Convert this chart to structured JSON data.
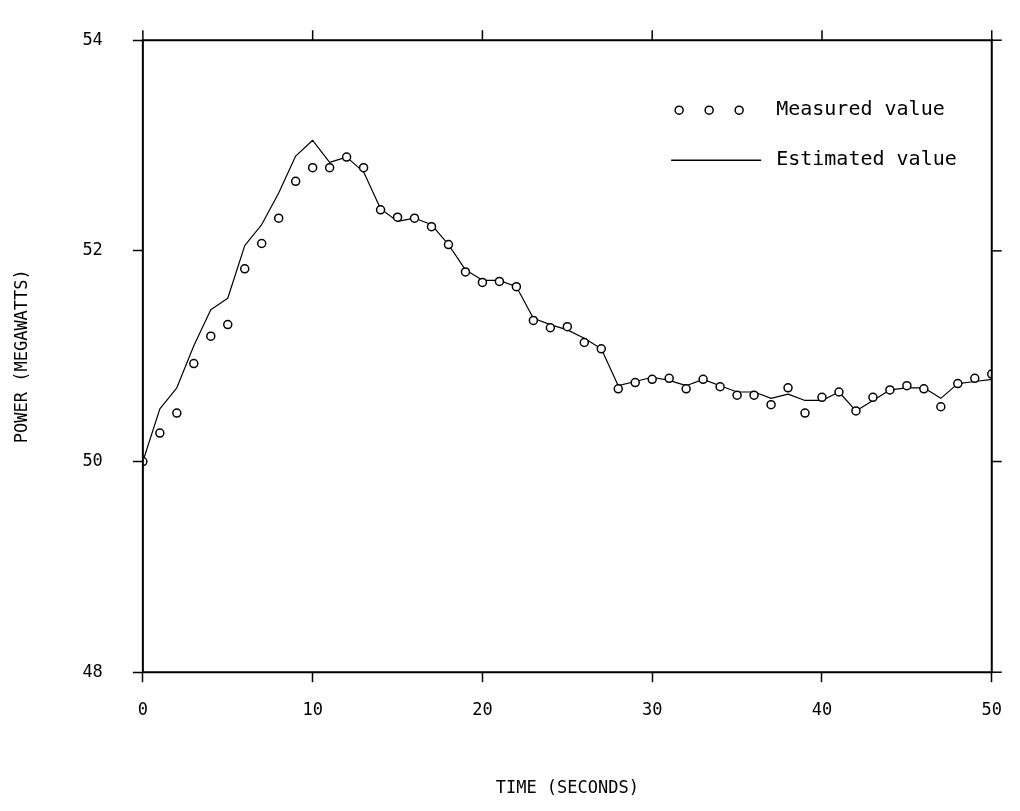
{
  "chart_data": {
    "type": "line",
    "xlabel": "TIME (SECONDS)",
    "ylabel": "POWER (MEGAWATTS)",
    "xlim": [
      0,
      50
    ],
    "xticks": [
      0,
      10,
      20,
      30,
      40,
      50
    ],
    "ylim": [
      48,
      54
    ],
    "yticks": [
      48,
      50,
      52,
      54
    ],
    "grid": false,
    "legend": "top right",
    "series": [
      {
        "name": "Measured value",
        "type": "scatter",
        "marker": "circle",
        "color": "#000000",
        "x": [
          0,
          1,
          2,
          3,
          4,
          5,
          6,
          7,
          8,
          9,
          10,
          11,
          12,
          13,
          14,
          15,
          16,
          17,
          18,
          19,
          20,
          21,
          22,
          23,
          24,
          25,
          26,
          27,
          28,
          29,
          30,
          31,
          32,
          33,
          34,
          35,
          36,
          37,
          38,
          39,
          40,
          41,
          42,
          43,
          44,
          45,
          46,
          47,
          48,
          49,
          50
        ],
        "values": [
          50.0,
          50.27,
          50.46,
          50.93,
          51.19,
          51.3,
          51.83,
          52.07,
          52.31,
          52.66,
          52.79,
          52.79,
          52.89,
          52.79,
          52.39,
          52.32,
          52.31,
          52.23,
          52.06,
          51.8,
          51.7,
          51.71,
          51.66,
          51.34,
          51.27,
          51.28,
          51.13,
          51.07,
          50.69,
          50.75,
          50.78,
          50.79,
          50.69,
          50.78,
          50.71,
          50.63,
          50.63,
          50.54,
          50.7,
          50.46,
          50.61,
          50.66,
          50.48,
          50.61,
          50.68,
          50.72,
          50.69,
          50.52,
          50.74,
          50.79,
          50.83
        ]
      },
      {
        "name": "Estimated value",
        "marker": "none",
        "line_style": "solid",
        "color": "#000000",
        "x": [
          0,
          1,
          2,
          3,
          4,
          5,
          6,
          7,
          8,
          9,
          10,
          11,
          12,
          13,
          14,
          15,
          16,
          17,
          18,
          19,
          20,
          21,
          22,
          23,
          24,
          25,
          26,
          27,
          28,
          29,
          30,
          31,
          32,
          33,
          34,
          35,
          36,
          37,
          38,
          39,
          40,
          41,
          42,
          43,
          44,
          45,
          46,
          47,
          48,
          49,
          50
        ],
        "values": [
          50.0,
          50.5,
          50.7,
          51.1,
          51.44,
          51.55,
          52.05,
          52.25,
          52.55,
          52.9,
          53.05,
          52.84,
          52.89,
          52.75,
          52.4,
          52.28,
          52.31,
          52.25,
          52.06,
          51.82,
          51.72,
          51.72,
          51.66,
          51.36,
          51.3,
          51.25,
          51.17,
          51.07,
          50.72,
          50.76,
          50.8,
          50.77,
          50.72,
          50.78,
          50.72,
          50.66,
          50.66,
          50.6,
          50.64,
          50.58,
          50.58,
          50.66,
          50.48,
          50.58,
          50.68,
          50.7,
          50.7,
          50.6,
          50.74,
          50.76,
          50.78
        ]
      }
    ]
  }
}
